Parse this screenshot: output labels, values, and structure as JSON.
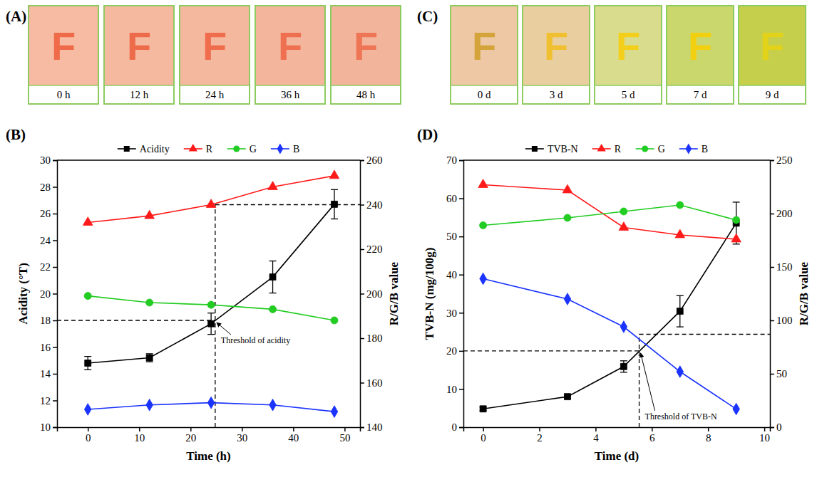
{
  "images": [
    {
      "label": "(A)",
      "items": [
        {
          "caption": "0 h",
          "color": "#f6bba2",
          "letter": "F",
          "letter_color": "#ee6a49"
        },
        {
          "caption": "12 h",
          "color": "#f5b9a0",
          "letter": "F",
          "letter_color": "#ed6b4a"
        },
        {
          "caption": "24 h",
          "color": "#f4b89e",
          "letter": "F",
          "letter_color": "#ef6d4c"
        },
        {
          "caption": "36 h",
          "color": "#f3b69c",
          "letter": "F",
          "letter_color": "#ef7050"
        },
        {
          "caption": "48 h",
          "color": "#f2b59c",
          "letter": "F",
          "letter_color": "#ee7555"
        }
      ]
    },
    {
      "label": "(C)",
      "items": [
        {
          "caption": "0 d",
          "color": "#eec8a4",
          "letter": "F",
          "letter_color": "#d4a43a"
        },
        {
          "caption": "3 d",
          "color": "#e9cf9f",
          "letter": "F",
          "letter_color": "#f0c030"
        },
        {
          "caption": "5 d",
          "color": "#d8dc8c",
          "letter": "F",
          "letter_color": "#f4cf1a"
        },
        {
          "caption": "7 d",
          "color": "#cad76c",
          "letter": "F",
          "letter_color": "#f2d010"
        },
        {
          "caption": "9 d",
          "color": "#c6cf4c",
          "letter": "F",
          "letter_color": "#e2d21a"
        }
      ]
    }
  ],
  "chart_data": [
    {
      "type": "line",
      "title": "(B)",
      "x_label": "Time (h)",
      "y_label": "Acidity (°T)",
      "y2_label": "R/G/B value",
      "x": [
        0,
        12,
        24,
        36,
        48
      ],
      "xlim": [
        -6,
        53
      ],
      "xticks": [
        0,
        10,
        20,
        30,
        40,
        50
      ],
      "ylim": [
        10,
        30
      ],
      "yticks": [
        10,
        12,
        14,
        16,
        18,
        20,
        22,
        24,
        26,
        28,
        30
      ],
      "y2lim": [
        140,
        260
      ],
      "y2ticks": [
        140,
        160,
        180,
        200,
        220,
        240,
        260
      ],
      "grid": false,
      "legend": "top",
      "series": [
        {
          "name": "Acidity",
          "color": "#000000",
          "marker": "square",
          "values": [
            14.8,
            15.2,
            17.75,
            21.25,
            26.7
          ],
          "errors": [
            0.5,
            0.3,
            0.8,
            1.2,
            1.1
          ]
        },
        {
          "name": "R",
          "color": "#ff1a1a",
          "marker": "triangle",
          "axis": "y2",
          "values": [
            232,
            235,
            240,
            248,
            253
          ]
        },
        {
          "name": "G",
          "color": "#22cc22",
          "marker": "circle",
          "axis": "y2",
          "values": [
            199,
            196,
            195,
            193,
            188
          ]
        },
        {
          "name": "B",
          "color": "#1a33ff",
          "marker": "diamond",
          "axis": "y2",
          "values": [
            148,
            150,
            151,
            150,
            147
          ]
        }
      ],
      "reference_lines": {
        "x": 24.8,
        "y": 18,
        "y2": 240
      },
      "annotations": [
        {
          "text": "Threshold of acidity",
          "x": 24.8,
          "y": 18
        }
      ]
    },
    {
      "type": "line",
      "title": "(D)",
      "x_label": "Time (d)",
      "y_label": "TVB-N (mg/100g)",
      "y2_label": "R/G/B value",
      "x": [
        0,
        3,
        5,
        7,
        9
      ],
      "xlim": [
        -0.7,
        10.2
      ],
      "xticks": [
        0,
        2,
        4,
        6,
        8,
        10
      ],
      "ylim": [
        0,
        70
      ],
      "yticks": [
        0,
        10,
        20,
        30,
        40,
        50,
        60,
        70
      ],
      "y2lim": [
        0,
        250
      ],
      "y2ticks": [
        0,
        50,
        100,
        150,
        200,
        250
      ],
      "grid": false,
      "legend": "top",
      "series": [
        {
          "name": "TVB-N",
          "color": "#000000",
          "marker": "square",
          "values": [
            4.8,
            8.0,
            15.9,
            30.4,
            53.5
          ],
          "errors": [
            0.5,
            0.4,
            1.5,
            4.1,
            5.5
          ]
        },
        {
          "name": "R",
          "color": "#ff1a1a",
          "marker": "triangle",
          "axis": "y2",
          "values": [
            227,
            222,
            187,
            180,
            176
          ]
        },
        {
          "name": "G",
          "color": "#22cc22",
          "marker": "circle",
          "axis": "y2",
          "values": [
            189,
            196,
            202,
            208,
            194
          ]
        },
        {
          "name": "B",
          "color": "#1a33ff",
          "marker": "diamond",
          "axis": "y2",
          "values": [
            139,
            120,
            94,
            52,
            17
          ]
        }
      ],
      "reference_lines": {
        "x": 5.55,
        "y": 20,
        "y2": 87
      },
      "annotations": [
        {
          "text": "Threshold of TVB-N",
          "x": 5.55,
          "y": 20
        }
      ]
    }
  ]
}
